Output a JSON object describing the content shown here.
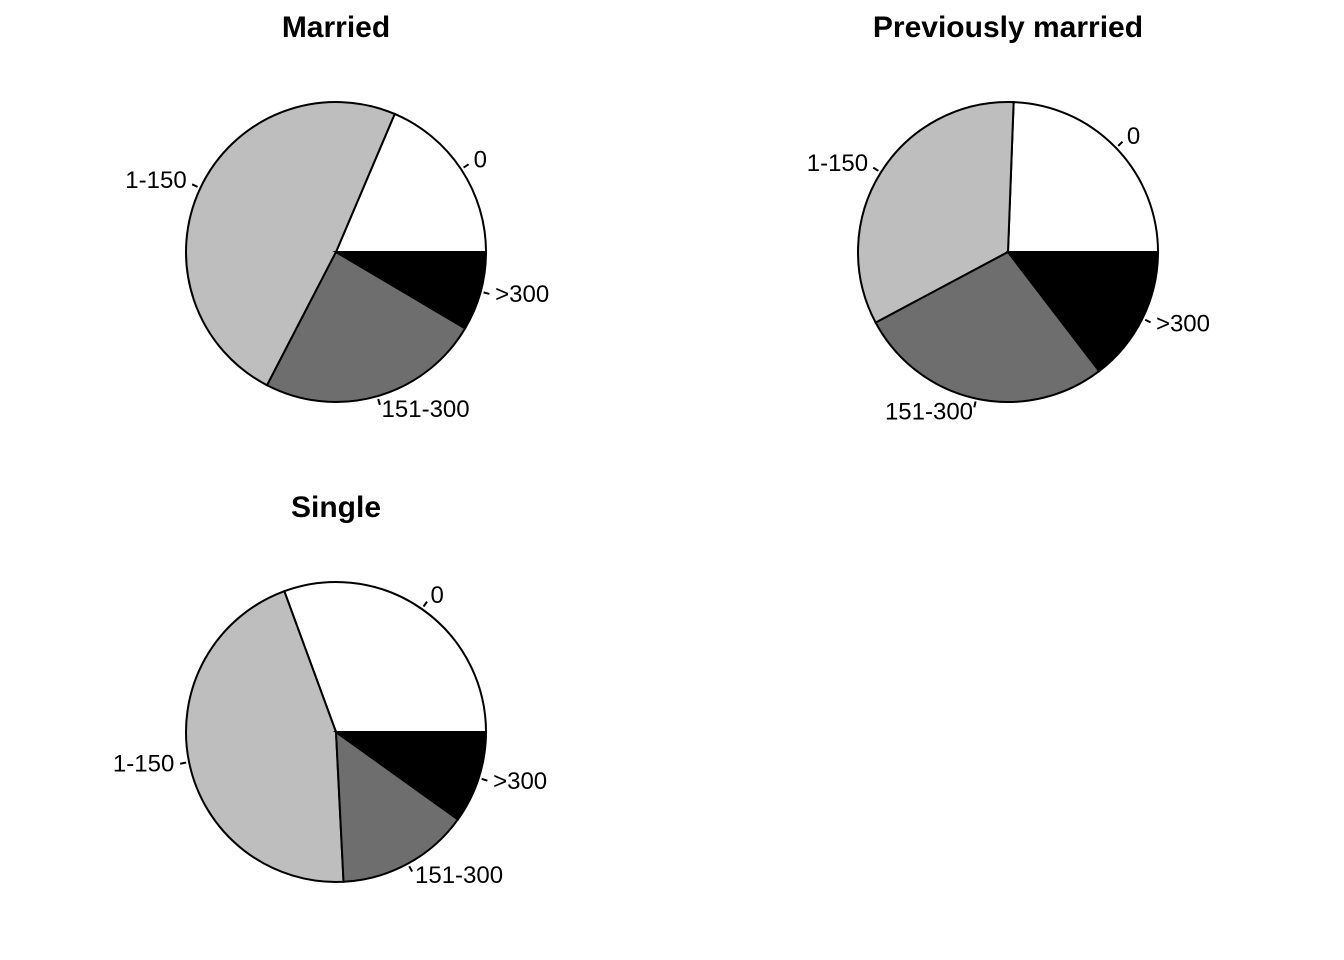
{
  "chart_data": [
    {
      "type": "pie",
      "title": "Married",
      "categories": [
        "0",
        "1-150",
        "151-300",
        ">300"
      ],
      "values": [
        18.6,
        48.8,
        24.1,
        8.5
      ],
      "colors": [
        "#ffffff",
        "#bebebe",
        "#6e6e6e",
        "#000000"
      ],
      "start_angle_deg": 0,
      "direction": "counterclockwise"
    },
    {
      "type": "pie",
      "title": "Previously married",
      "categories": [
        "0",
        "1-150",
        "151-300",
        ">300"
      ],
      "values": [
        24.4,
        33.4,
        27.6,
        14.6
      ],
      "colors": [
        "#ffffff",
        "#bebebe",
        "#6e6e6e",
        "#000000"
      ],
      "start_angle_deg": 0,
      "direction": "counterclockwise"
    },
    {
      "type": "pie",
      "title": "Single",
      "categories": [
        "0",
        "1-150",
        "151-300",
        ">300"
      ],
      "values": [
        30.6,
        45.2,
        14.3,
        9.9
      ],
      "colors": [
        "#ffffff",
        "#bebebe",
        "#6e6e6e",
        "#000000"
      ],
      "start_angle_deg": 0,
      "direction": "counterclockwise"
    }
  ]
}
